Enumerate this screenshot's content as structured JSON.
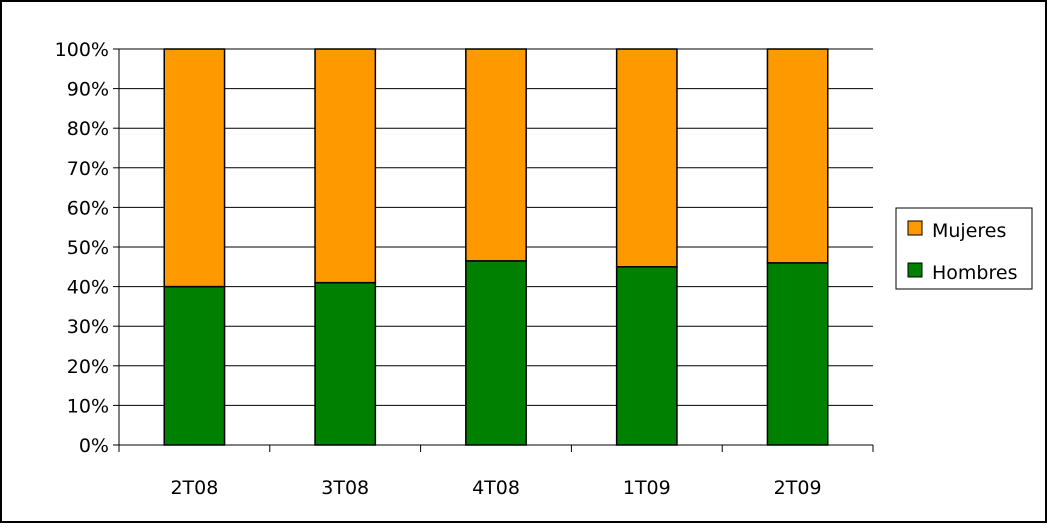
{
  "chart_data": {
    "type": "bar",
    "stacked": true,
    "normalized": true,
    "categories": [
      "2T08",
      "3T08",
      "4T08",
      "1T09",
      "2T09"
    ],
    "series": [
      {
        "name": "Hombres",
        "values": [
          40,
          41,
          46.5,
          45,
          46
        ],
        "color": "#008000"
      },
      {
        "name": "Mujeres",
        "values": [
          60,
          59,
          53.5,
          55,
          54
        ],
        "color": "#FF9900"
      }
    ],
    "y_tick_labels": [
      "0%",
      "10%",
      "20%",
      "30%",
      "40%",
      "50%",
      "60%",
      "70%",
      "80%",
      "90%",
      "100%"
    ],
    "ylim": [
      0,
      100
    ],
    "grid": true,
    "legend_position": "right",
    "legend_order": [
      "Mujeres",
      "Hombres"
    ]
  }
}
